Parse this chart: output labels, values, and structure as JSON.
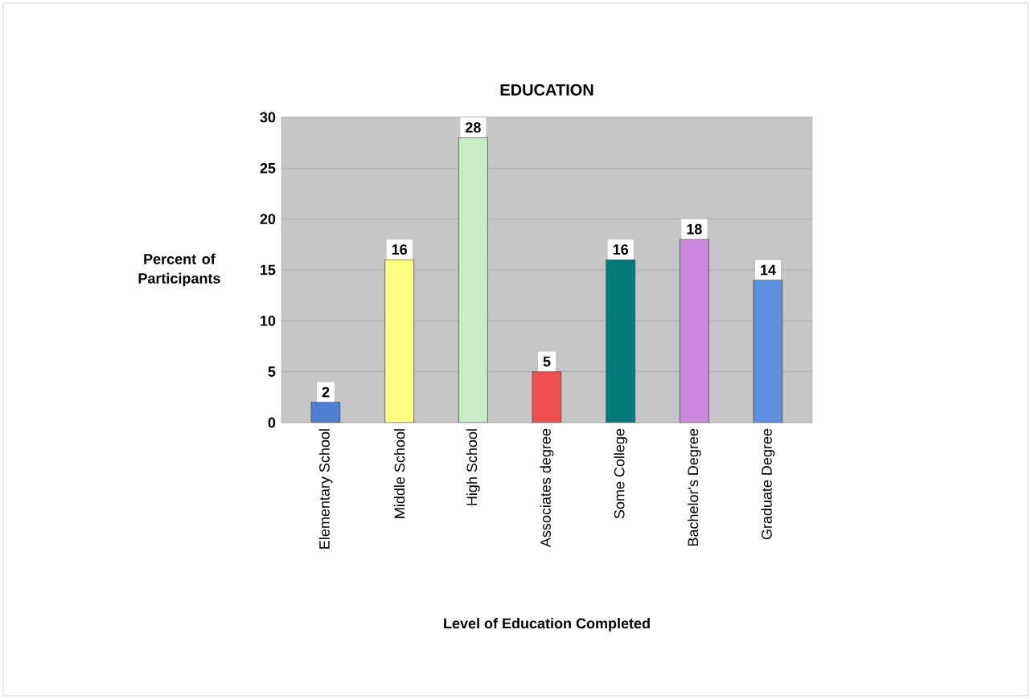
{
  "chart_data": {
    "type": "bar",
    "title": "EDUCATION",
    "xlabel": "Level of Education Completed",
    "ylabel": "Percent of Participants",
    "categories": [
      "Elementary School",
      "Middle School",
      "High School",
      "Associates degree",
      "Some College",
      "Bachelor's Degree",
      "Graduate Degree"
    ],
    "values": [
      2,
      16,
      28,
      5,
      16,
      18,
      14
    ],
    "colors": [
      "#4f7fd0",
      "#ffff80",
      "#c8ecc8",
      "#f05050",
      "#007a7a",
      "#cc88dd",
      "#5f8fdf"
    ],
    "ylim": [
      0,
      30
    ],
    "yticks": [
      0,
      5,
      10,
      15,
      20,
      25,
      30
    ],
    "grid": "y",
    "data_labels": true
  }
}
